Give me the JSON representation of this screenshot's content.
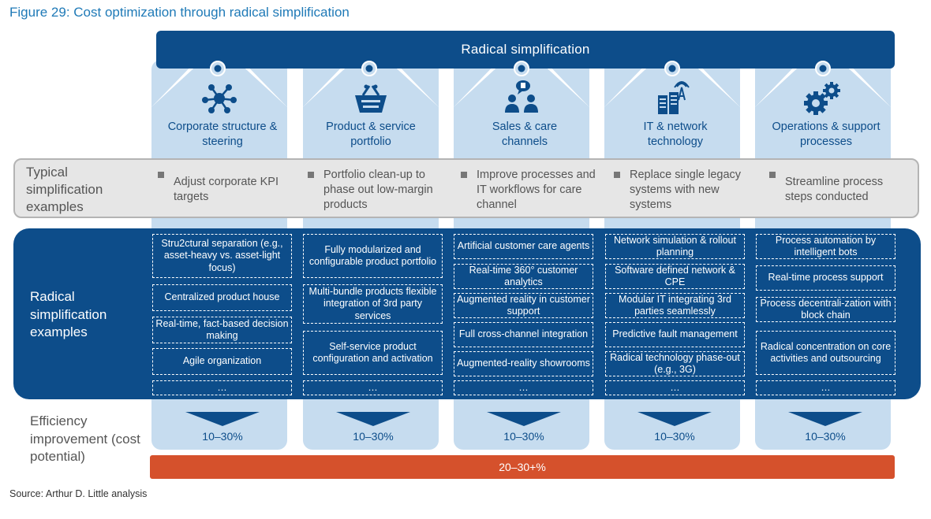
{
  "figure_title": "Figure 29:  Cost optimization through radical simplification",
  "banner": "Radical simplification",
  "typical_label": "Typical simplification examples",
  "radical_label": "Radical simplification examples",
  "efficiency_label": "Efficiency improvement (cost potential)",
  "total": "20–30+%",
  "source": "Source: Arthur D. Little analysis",
  "colors": {
    "navy": "#0d4d8a",
    "light_blue": "#c6dcef",
    "orange": "#d5512c",
    "grey_band": "#e6e6e6",
    "title_blue": "#1f7ab7"
  },
  "columns": [
    {
      "icon": "network-nodes-icon",
      "title": "Corporate structure & steering",
      "typical": "Adjust corporate KPI targets",
      "radical": [
        "Stru2ctural separation (e.g., asset-heavy vs. asset-light focus)",
        "Centralized product house",
        "Real-time, fact-based decision making",
        "Agile organization",
        "…"
      ],
      "efficiency": "10–30%"
    },
    {
      "icon": "shopping-basket-icon",
      "title": "Product & service portfolio",
      "typical": "Portfolio clean-up to phase out low-margin products",
      "radical": [
        "Fully modularized and configurable product portfolio",
        "Multi-bundle products flexible integration of 3rd party services",
        "Self-service product configuration and activation",
        "…"
      ],
      "efficiency": "10–30%"
    },
    {
      "icon": "customer-chat-icon",
      "title": "Sales & care channels",
      "typical": "Improve processes and IT workflows for care channel",
      "radical": [
        "Artificial customer care agents",
        "Real-time 360° customer analytics",
        "Augmented reality in customer support",
        "Full cross-channel integration",
        "Augmented-reality showrooms",
        "…"
      ],
      "efficiency": "10–30%"
    },
    {
      "icon": "server-antenna-icon",
      "title": "IT & network technology",
      "typical": "Replace single legacy systems with new systems",
      "radical": [
        "Network simulation & rollout planning",
        "Software defined network & CPE",
        "Modular IT integrating 3rd parties seamlessly",
        "Predictive fault management",
        "Radical technology phase-out (e.g., 3G)",
        "…"
      ],
      "efficiency": "10–30%"
    },
    {
      "icon": "gears-icon",
      "title": "Operations & support processes",
      "typical": "Streamline process steps conducted",
      "radical": [
        "Process automation by intelligent bots",
        "Real-time process support",
        "Process decentrali-zation with block chain",
        "Radical concentration on core activities and outsourcing",
        "…"
      ],
      "efficiency": "10–30%"
    }
  ]
}
